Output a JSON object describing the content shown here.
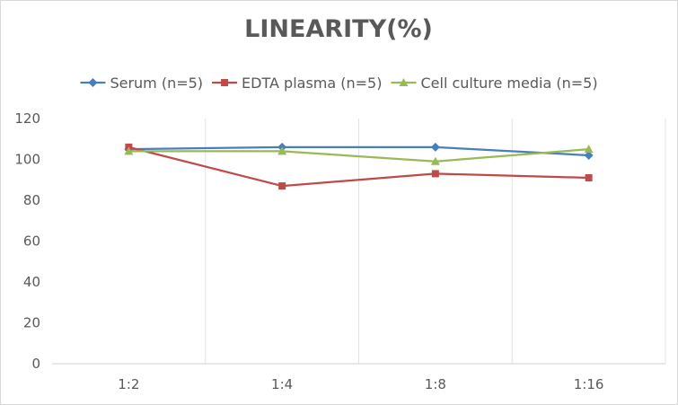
{
  "chart_data": {
    "type": "line",
    "title": "LINEARITY(%)",
    "xlabel": "",
    "ylabel": "",
    "categories": [
      "1:2",
      "1:4",
      "1:8",
      "1:16"
    ],
    "ylim": [
      0,
      120
    ],
    "yticks": [
      0,
      20,
      40,
      60,
      80,
      100,
      120
    ],
    "grid": "vertical",
    "legend_position": "top",
    "series": [
      {
        "name": "Serum (n=5)",
        "values": [
          105,
          106,
          106,
          102
        ],
        "color": "#4a7ebb",
        "marker": "diamond"
      },
      {
        "name": "EDTA plasma (n=5)",
        "values": [
          106,
          87,
          93,
          91
        ],
        "color": "#be4b48",
        "marker": "square"
      },
      {
        "name": "Cell culture media (n=5)",
        "values": [
          104,
          104,
          99,
          105
        ],
        "color": "#98b954",
        "marker": "triangle"
      }
    ]
  }
}
